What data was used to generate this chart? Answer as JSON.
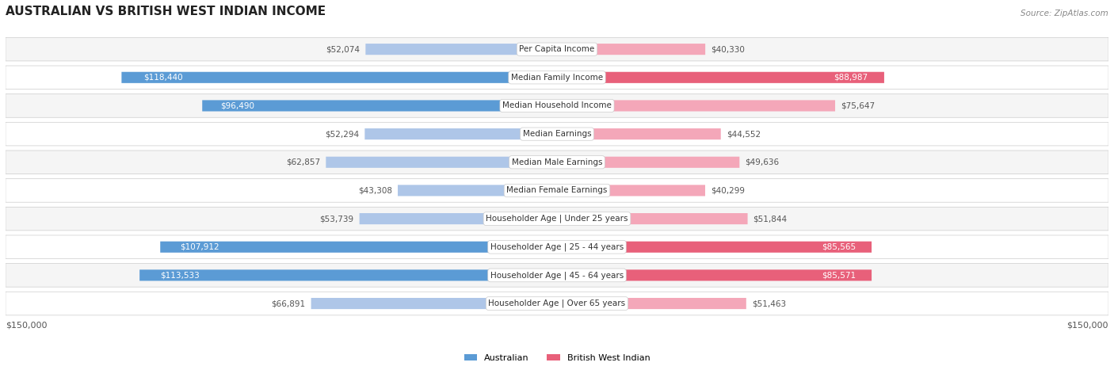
{
  "title": "AUSTRALIAN VS BRITISH WEST INDIAN INCOME",
  "source": "Source: ZipAtlas.com",
  "categories": [
    "Per Capita Income",
    "Median Family Income",
    "Median Household Income",
    "Median Earnings",
    "Median Male Earnings",
    "Median Female Earnings",
    "Householder Age | Under 25 years",
    "Householder Age | 25 - 44 years",
    "Householder Age | 45 - 64 years",
    "Householder Age | Over 65 years"
  ],
  "australian_values": [
    52074,
    118440,
    96490,
    52294,
    62857,
    43308,
    53739,
    107912,
    113533,
    66891
  ],
  "bwi_values": [
    40330,
    88987,
    75647,
    44552,
    49636,
    40299,
    51844,
    85565,
    85571,
    51463
  ],
  "australian_labels": [
    "$52,074",
    "$118,440",
    "$96,490",
    "$52,294",
    "$62,857",
    "$43,308",
    "$53,739",
    "$107,912",
    "$113,533",
    "$66,891"
  ],
  "bwi_labels": [
    "$40,330",
    "$88,987",
    "$75,647",
    "$44,552",
    "$49,636",
    "$40,299",
    "$51,844",
    "$85,565",
    "$85,571",
    "$51,463"
  ],
  "max_val": 150000,
  "australian_color_light": "#aec6e8",
  "australian_color_dark": "#5b9bd5",
  "bwi_color_light": "#f4a7b9",
  "bwi_color_dark": "#e8607a",
  "threshold": 80000,
  "bg_color": "#ffffff",
  "row_bg_light": "#f5f5f5",
  "row_bg_white": "#ffffff",
  "legend_australian": "Australian",
  "legend_bwi": "British West Indian",
  "xlabel_left": "$150,000",
  "xlabel_right": "$150,000"
}
